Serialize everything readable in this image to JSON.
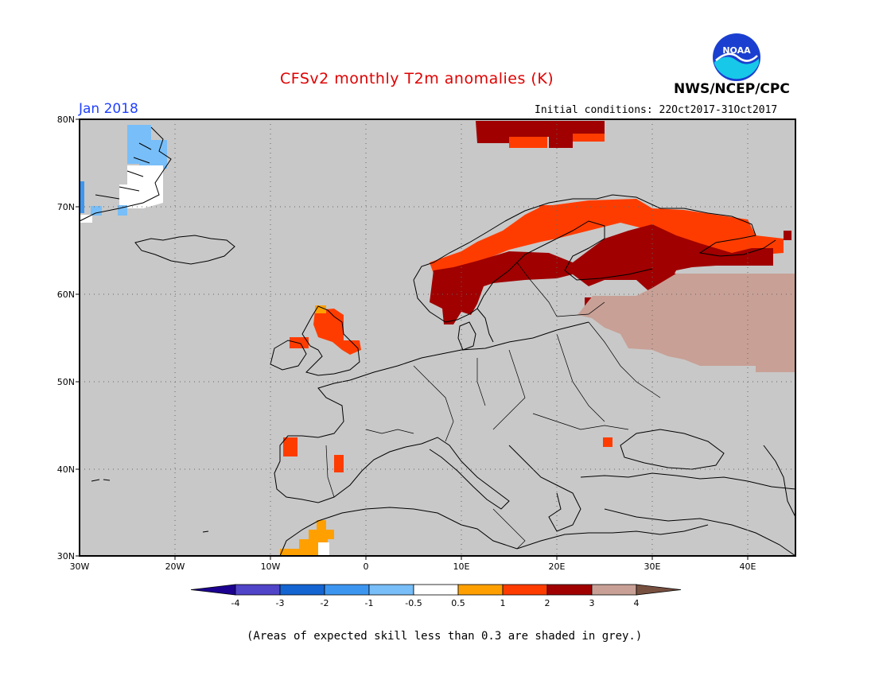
{
  "title": "CFSv2 monthly T2m anomalies (K)",
  "agency": "NWS/NCEP/CPC",
  "logo_text": "NOAA",
  "valid_month": "Jan 2018",
  "initial_conditions": "Initial conditions: 22Oct2017-31Oct2017",
  "footnote": "(Areas of expected skill less than 0.3 are shaded in grey.)",
  "map": {
    "lon_range": [
      -30,
      45
    ],
    "lat_range": [
      30,
      80
    ],
    "background_color": "#c8c8c8",
    "grid": "dotted",
    "lat_labels": [
      "80N",
      "70N",
      "60N",
      "50N",
      "40N",
      "30N"
    ],
    "lon_labels": [
      "30W",
      "20W",
      "10W",
      "0",
      "10E",
      "20E",
      "30E",
      "40E"
    ]
  },
  "colorbar": {
    "labels": [
      "-4",
      "-3",
      "-2",
      "-1",
      "-0.5",
      "0.5",
      "1",
      "2",
      "3",
      "4"
    ],
    "colors": [
      "#1c0090",
      "#5044c8",
      "#1464d2",
      "#3c96f0",
      "#78bef8",
      "#ffffff",
      "#ffa000",
      "#ff3c00",
      "#a00000",
      "#c8a096",
      "#785040"
    ]
  }
}
